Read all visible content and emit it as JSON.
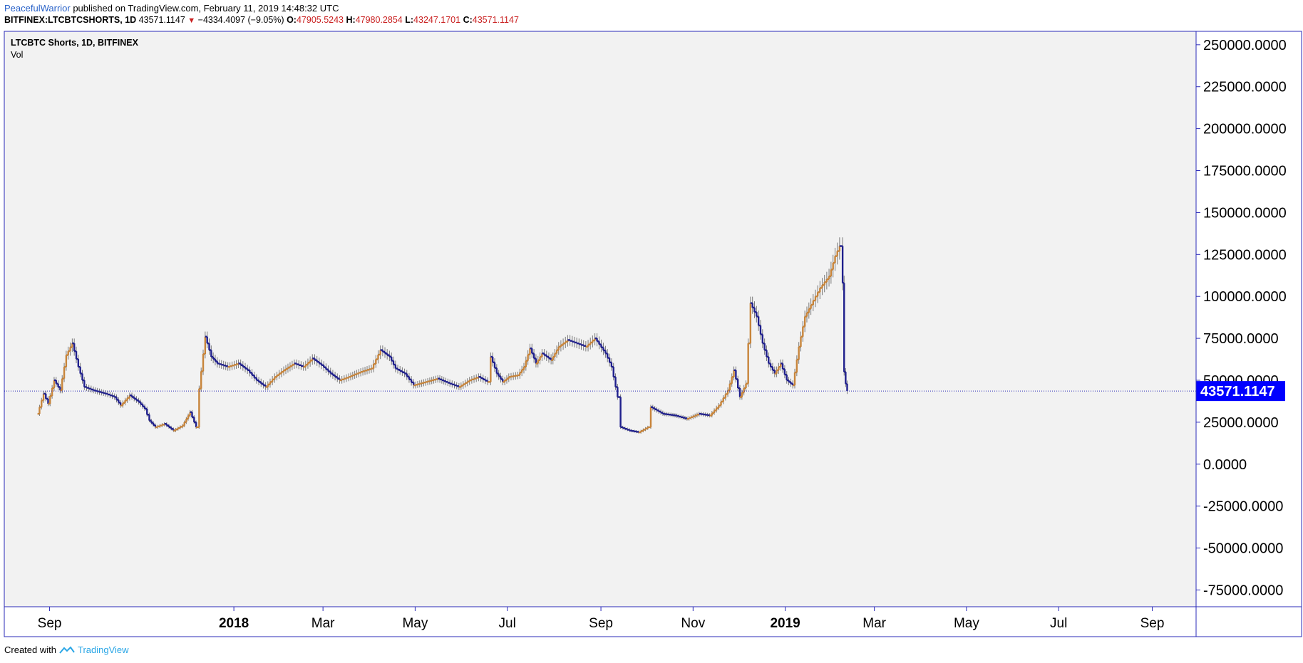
{
  "header": {
    "author": "PeacefulWarrior",
    "published_text": " published on TradingView.com, February 11, 2019 14:48:32 UTC",
    "symbol_full": "BITFINEX:LTCBTCSHORTS, 1D",
    "last": "43571.1147",
    "change": "−4334.4097 (−9.05%)",
    "o_label": "O:",
    "o_value": "47905.5243",
    "h_label": "H:",
    "h_value": "47980.2854",
    "l_label": "L:",
    "l_value": "43247.1701",
    "c_label": "C:",
    "c_value": "43571.1147"
  },
  "legend": {
    "title": "LTCBTC Shorts, 1D, BITFINEX",
    "indicator": "Vol"
  },
  "footer": {
    "created_with": "Created with",
    "brand": "TradingView"
  },
  "colors": {
    "up": "#c7843a",
    "down": "#1f1f8c",
    "wick": "#7a7a7a",
    "frame": "#2b2bb8",
    "pane_bg": "#f2f2f2",
    "price_line": "#2b2bb8",
    "price_label_bg": "#0000ff"
  },
  "chart_data": {
    "type": "candlestick",
    "title": "LTCBTC Shorts, 1D, BITFINEX",
    "interval": "1D",
    "exchange": "BITFINEX",
    "x_range": [
      "2017-08-02",
      "2019-09-30"
    ],
    "ylim": [
      -85000,
      258000
    ],
    "y_ticks": [
      250000,
      225000,
      200000,
      175000,
      150000,
      125000,
      100000,
      75000,
      50000,
      25000,
      0,
      -25000,
      -50000,
      -75000
    ],
    "y_tick_labels": [
      "250000.0000",
      "225000.0000",
      "200000.0000",
      "175000.0000",
      "150000.0000",
      "125000.0000",
      "100000.0000",
      "75000.0000",
      "50000.0000",
      "25000.0000",
      "0.0000",
      "-25000.0000",
      "-50000.0000",
      "-75000.0000"
    ],
    "x_ticks": [
      {
        "date": "2017-09-01",
        "label": "Sep",
        "bold": false
      },
      {
        "date": "2018-01-01",
        "label": "2018",
        "bold": true
      },
      {
        "date": "2018-03-01",
        "label": "Mar",
        "bold": false
      },
      {
        "date": "2018-05-01",
        "label": "May",
        "bold": false
      },
      {
        "date": "2018-07-01",
        "label": "Jul",
        "bold": false
      },
      {
        "date": "2018-09-01",
        "label": "Sep",
        "bold": false
      },
      {
        "date": "2018-11-01",
        "label": "Nov",
        "bold": false
      },
      {
        "date": "2019-01-01",
        "label": "2019",
        "bold": true
      },
      {
        "date": "2019-03-01",
        "label": "Mar",
        "bold": false
      },
      {
        "date": "2019-05-01",
        "label": "May",
        "bold": false
      },
      {
        "date": "2019-07-01",
        "label": "Jul",
        "bold": false
      },
      {
        "date": "2019-09-01",
        "label": "Sep",
        "bold": false
      }
    ],
    "last_price": 43571.1147,
    "last_price_label": "43571.1147",
    "series": [
      {
        "date": "2017-08-24",
        "close": 30000
      },
      {
        "date": "2017-08-28",
        "close": 42000
      },
      {
        "date": "2017-08-31",
        "close": 36000
      },
      {
        "date": "2017-09-04",
        "close": 50000
      },
      {
        "date": "2017-09-08",
        "close": 44000
      },
      {
        "date": "2017-09-12",
        "close": 65000
      },
      {
        "date": "2017-09-16",
        "close": 72000
      },
      {
        "date": "2017-09-20",
        "close": 58000
      },
      {
        "date": "2017-09-24",
        "close": 46000
      },
      {
        "date": "2017-09-30",
        "close": 44000
      },
      {
        "date": "2017-10-08",
        "close": 42000
      },
      {
        "date": "2017-10-14",
        "close": 40000
      },
      {
        "date": "2017-10-18",
        "close": 35000
      },
      {
        "date": "2017-10-24",
        "close": 41000
      },
      {
        "date": "2017-10-30",
        "close": 37000
      },
      {
        "date": "2017-11-03",
        "close": 33000
      },
      {
        "date": "2017-11-06",
        "close": 26000
      },
      {
        "date": "2017-11-10",
        "close": 22000
      },
      {
        "date": "2017-11-16",
        "close": 24000
      },
      {
        "date": "2017-11-22",
        "close": 20000
      },
      {
        "date": "2017-11-28",
        "close": 23000
      },
      {
        "date": "2017-12-03",
        "close": 31000
      },
      {
        "date": "2017-12-07",
        "close": 22000
      },
      {
        "date": "2017-12-09",
        "close": 45000
      },
      {
        "date": "2017-12-13",
        "close": 76000
      },
      {
        "date": "2017-12-17",
        "close": 64000
      },
      {
        "date": "2017-12-21",
        "close": 60000
      },
      {
        "date": "2017-12-28",
        "close": 58000
      },
      {
        "date": "2018-01-04",
        "close": 60000
      },
      {
        "date": "2018-01-10",
        "close": 56000
      },
      {
        "date": "2018-01-16",
        "close": 50000
      },
      {
        "date": "2018-01-22",
        "close": 46000
      },
      {
        "date": "2018-01-28",
        "close": 52000
      },
      {
        "date": "2018-02-03",
        "close": 56000
      },
      {
        "date": "2018-02-10",
        "close": 60000
      },
      {
        "date": "2018-02-16",
        "close": 58000
      },
      {
        "date": "2018-02-22",
        "close": 63000
      },
      {
        "date": "2018-02-28",
        "close": 59000
      },
      {
        "date": "2018-03-06",
        "close": 54000
      },
      {
        "date": "2018-03-12",
        "close": 50000
      },
      {
        "date": "2018-03-18",
        "close": 52000
      },
      {
        "date": "2018-03-26",
        "close": 55000
      },
      {
        "date": "2018-04-02",
        "close": 57000
      },
      {
        "date": "2018-04-08",
        "close": 68000
      },
      {
        "date": "2018-04-14",
        "close": 64000
      },
      {
        "date": "2018-04-18",
        "close": 57000
      },
      {
        "date": "2018-04-24",
        "close": 54000
      },
      {
        "date": "2018-04-30",
        "close": 47000
      },
      {
        "date": "2018-05-08",
        "close": 49000
      },
      {
        "date": "2018-05-16",
        "close": 51000
      },
      {
        "date": "2018-05-24",
        "close": 48000
      },
      {
        "date": "2018-05-30",
        "close": 46000
      },
      {
        "date": "2018-06-06",
        "close": 50000
      },
      {
        "date": "2018-06-12",
        "close": 52000
      },
      {
        "date": "2018-06-18",
        "close": 49000
      },
      {
        "date": "2018-06-20",
        "close": 64000
      },
      {
        "date": "2018-06-24",
        "close": 54000
      },
      {
        "date": "2018-06-28",
        "close": 49000
      },
      {
        "date": "2018-07-02",
        "close": 52000
      },
      {
        "date": "2018-07-08",
        "close": 53000
      },
      {
        "date": "2018-07-12",
        "close": 58000
      },
      {
        "date": "2018-07-16",
        "close": 69000
      },
      {
        "date": "2018-07-20",
        "close": 60000
      },
      {
        "date": "2018-07-24",
        "close": 66000
      },
      {
        "date": "2018-07-30",
        "close": 62000
      },
      {
        "date": "2018-08-04",
        "close": 70000
      },
      {
        "date": "2018-08-10",
        "close": 74000
      },
      {
        "date": "2018-08-16",
        "close": 72000
      },
      {
        "date": "2018-08-22",
        "close": 70000
      },
      {
        "date": "2018-08-28",
        "close": 75000
      },
      {
        "date": "2018-09-04",
        "close": 66000
      },
      {
        "date": "2018-09-08",
        "close": 58000
      },
      {
        "date": "2018-09-12",
        "close": 40000
      },
      {
        "date": "2018-09-14",
        "close": 22000
      },
      {
        "date": "2018-09-20",
        "close": 20000
      },
      {
        "date": "2018-09-26",
        "close": 19000
      },
      {
        "date": "2018-10-02",
        "close": 22000
      },
      {
        "date": "2018-10-04",
        "close": 34000
      },
      {
        "date": "2018-10-12",
        "close": 30000
      },
      {
        "date": "2018-10-20",
        "close": 29000
      },
      {
        "date": "2018-10-28",
        "close": 27000
      },
      {
        "date": "2018-11-05",
        "close": 30000
      },
      {
        "date": "2018-11-12",
        "close": 29000
      },
      {
        "date": "2018-11-18",
        "close": 35000
      },
      {
        "date": "2018-11-24",
        "close": 44000
      },
      {
        "date": "2018-11-28",
        "close": 56000
      },
      {
        "date": "2018-12-02",
        "close": 40000
      },
      {
        "date": "2018-12-06",
        "close": 48000
      },
      {
        "date": "2018-12-09",
        "close": 96000
      },
      {
        "date": "2018-12-13",
        "close": 88000
      },
      {
        "date": "2018-12-17",
        "close": 72000
      },
      {
        "date": "2018-12-21",
        "close": 60000
      },
      {
        "date": "2018-12-25",
        "close": 54000
      },
      {
        "date": "2018-12-29",
        "close": 60000
      },
      {
        "date": "2019-01-02",
        "close": 50000
      },
      {
        "date": "2019-01-06",
        "close": 47000
      },
      {
        "date": "2019-01-10",
        "close": 70000
      },
      {
        "date": "2019-01-14",
        "close": 88000
      },
      {
        "date": "2019-01-18",
        "close": 95000
      },
      {
        "date": "2019-01-24",
        "close": 105000
      },
      {
        "date": "2019-01-30",
        "close": 112000
      },
      {
        "date": "2019-02-03",
        "close": 124000
      },
      {
        "date": "2019-02-06",
        "close": 130000
      },
      {
        "date": "2019-02-08",
        "close": 108000
      },
      {
        "date": "2019-02-09",
        "close": 55000
      },
      {
        "date": "2019-02-10",
        "close": 47905
      },
      {
        "date": "2019-02-11",
        "close": 43571
      }
    ]
  }
}
